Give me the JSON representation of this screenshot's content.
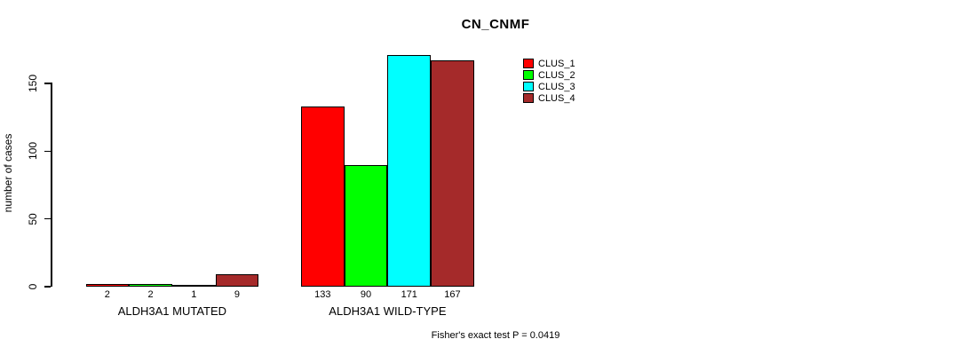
{
  "title": "CN_CNMF",
  "y_axis": {
    "label": "number of cases"
  },
  "footer": "Fisher's exact test P = 0.0419",
  "chart_data": {
    "type": "bar",
    "title": "CN_CNMF",
    "xlabel": "",
    "ylabel": "number of cases",
    "ylim": [
      0,
      175
    ],
    "yticks": [
      0,
      50,
      100,
      150
    ],
    "grid": false,
    "legend_position": "inside-top-right",
    "categories": [
      "ALDH3A1 MUTATED",
      "ALDH3A1 WILD-TYPE"
    ],
    "series": [
      {
        "name": "CLUS_1",
        "color": "#ff0000",
        "values": [
          2,
          133
        ]
      },
      {
        "name": "CLUS_2",
        "color": "#00ff00",
        "values": [
          2,
          90
        ]
      },
      {
        "name": "CLUS_3",
        "color": "#00ffff",
        "values": [
          1,
          171
        ]
      },
      {
        "name": "CLUS_4",
        "color": "#a52a2a",
        "values": [
          9,
          167
        ]
      }
    ],
    "bar_value_labels_shown": true,
    "annotation": "Fisher's exact test P = 0.0419"
  }
}
